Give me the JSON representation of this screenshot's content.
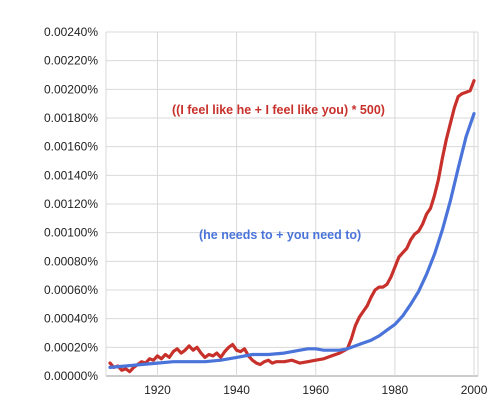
{
  "chart_data": {
    "type": "line",
    "title": "",
    "xlabel": "",
    "ylabel": "",
    "xlim": [
      1907,
      2001
    ],
    "ylim": [
      0,
      0.0024
    ],
    "y_ticks": [
      0,
      0.0002,
      0.0004,
      0.0006,
      0.0008,
      0.001,
      0.0012,
      0.0014,
      0.0016,
      0.0018,
      0.002,
      0.0022,
      0.0024
    ],
    "y_tick_labels": [
      "0.00000%",
      "0.00020%",
      "0.00040%",
      "0.00060%",
      "0.00080%",
      "0.00100%",
      "0.00120%",
      "0.00140%",
      "0.00160%",
      "0.00180%",
      "0.00200%",
      "0.00220%",
      "0.00240%"
    ],
    "x_ticks": [
      1920,
      1940,
      1960,
      1980,
      2000
    ],
    "x_tick_labels": [
      "1920",
      "1940",
      "1960",
      "1980",
      "2000"
    ],
    "grid": true,
    "series": [
      {
        "name": "((I feel like he + I feel like you) * 500)",
        "color": "#c8312b",
        "x": [
          1908,
          1909,
          1910,
          1911,
          1912,
          1913,
          1914,
          1915,
          1916,
          1917,
          1918,
          1919,
          1920,
          1921,
          1922,
          1923,
          1924,
          1925,
          1926,
          1927,
          1928,
          1929,
          1930,
          1931,
          1932,
          1933,
          1934,
          1935,
          1936,
          1937,
          1938,
          1939,
          1940,
          1941,
          1942,
          1943,
          1944,
          1945,
          1946,
          1947,
          1948,
          1949,
          1950,
          1952,
          1954,
          1956,
          1958,
          1960,
          1962,
          1964,
          1966,
          1968,
          1969,
          1970,
          1971,
          1972,
          1973,
          1974,
          1975,
          1976,
          1977,
          1978,
          1979,
          1980,
          1981,
          1982,
          1983,
          1984,
          1985,
          1986,
          1987,
          1988,
          1989,
          1990,
          1991,
          1992,
          1993,
          1994,
          1995,
          1996,
          1997,
          1998,
          1999,
          2000
        ],
        "values": [
          9e-05,
          6e-05,
          7e-05,
          4e-05,
          5e-05,
          3e-05,
          6e-05,
          8e-05,
          0.0001,
          9e-05,
          0.00012,
          0.00011,
          0.00014,
          0.00012,
          0.00015,
          0.00013,
          0.00017,
          0.00019,
          0.00016,
          0.00018,
          0.00021,
          0.00018,
          0.0002,
          0.00016,
          0.00013,
          0.00015,
          0.00014,
          0.00016,
          0.00013,
          0.00017,
          0.0002,
          0.00022,
          0.00018,
          0.00017,
          0.00019,
          0.00014,
          0.00011,
          9e-05,
          8e-05,
          0.0001,
          0.00011,
          9e-05,
          0.0001,
          0.0001,
          0.00011,
          9e-05,
          0.0001,
          0.00011,
          0.00012,
          0.00014,
          0.00016,
          0.00019,
          0.00026,
          0.00035,
          0.00041,
          0.00045,
          0.00049,
          0.00055,
          0.0006,
          0.00062,
          0.00062,
          0.00064,
          0.00069,
          0.00076,
          0.00083,
          0.00086,
          0.00089,
          0.00095,
          0.00099,
          0.00101,
          0.00106,
          0.00113,
          0.00117,
          0.00126,
          0.00137,
          0.00152,
          0.00165,
          0.00176,
          0.00187,
          0.00195,
          0.00197,
          0.00198,
          0.00199,
          0.00206
        ]
      },
      {
        "name": "(he needs to + you need to)",
        "color": "#4a74d9",
        "x": [
          1908,
          1912,
          1916,
          1920,
          1924,
          1928,
          1932,
          1936,
          1940,
          1944,
          1948,
          1952,
          1956,
          1958,
          1960,
          1962,
          1964,
          1966,
          1968,
          1970,
          1972,
          1974,
          1976,
          1978,
          1980,
          1982,
          1984,
          1986,
          1988,
          1990,
          1992,
          1994,
          1996,
          1998,
          2000
        ],
        "values": [
          6e-05,
          7e-05,
          8e-05,
          9e-05,
          0.0001,
          0.0001,
          0.0001,
          0.00011,
          0.00013,
          0.00015,
          0.00015,
          0.00016,
          0.00018,
          0.00019,
          0.00019,
          0.00018,
          0.00018,
          0.00018,
          0.00019,
          0.00021,
          0.00023,
          0.00025,
          0.00028,
          0.00032,
          0.00036,
          0.00042,
          0.0005,
          0.00059,
          0.00071,
          0.00085,
          0.00102,
          0.00122,
          0.00145,
          0.00167,
          0.00183
        ]
      }
    ]
  }
}
